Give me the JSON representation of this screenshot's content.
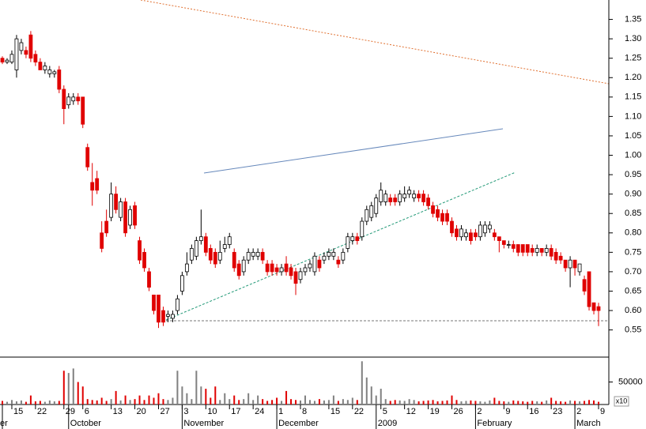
{
  "chart_data": {
    "type": "candlestick",
    "categories": [
      null,
      null,
      "15",
      null,
      null,
      null,
      null,
      "22",
      null,
      null,
      null,
      null,
      null,
      "29",
      null,
      null,
      null,
      "6",
      null,
      null,
      null,
      null,
      null,
      "13",
      null,
      null,
      null,
      null,
      "20",
      null,
      null,
      null,
      null,
      "27",
      null,
      null,
      null,
      null,
      "3",
      null,
      null,
      null,
      null,
      "10",
      null,
      null,
      null,
      null,
      "17",
      null,
      null,
      null,
      null,
      "24",
      null,
      null,
      null,
      null,
      "1",
      null,
      null,
      null,
      null,
      "8",
      null,
      null,
      null,
      null,
      null,
      "15",
      null,
      null,
      null,
      null,
      "22",
      null,
      null,
      null,
      null,
      null,
      "5",
      null,
      null,
      null,
      null,
      "12",
      null,
      null,
      null,
      null,
      "19",
      null,
      null,
      null,
      null,
      "26",
      null,
      null,
      null,
      null,
      "2",
      null,
      null,
      null,
      null,
      null,
      "9",
      null,
      null,
      null,
      null,
      "16",
      null,
      null,
      null,
      null,
      "23",
      null,
      null,
      null,
      null,
      "2",
      null,
      null,
      null,
      null,
      "9"
    ],
    "month_labels": [
      "er",
      null,
      null,
      null,
      null,
      null,
      null,
      null,
      null,
      null,
      null,
      null,
      null,
      null,
      "October",
      null,
      null,
      null,
      null,
      null,
      null,
      null,
      null,
      null,
      null,
      null,
      null,
      null,
      null,
      null,
      null,
      null,
      null,
      null,
      null,
      null,
      null,
      null,
      "November",
      null,
      null,
      null,
      null,
      null,
      null,
      null,
      null,
      null,
      null,
      null,
      null,
      null,
      null,
      null,
      null,
      null,
      null,
      null,
      "December",
      null,
      null,
      null,
      null,
      null,
      null,
      null,
      null,
      null,
      null,
      null,
      null,
      null,
      null,
      null,
      null,
      null,
      null,
      null,
      null,
      "2009",
      null,
      null,
      null,
      null,
      null,
      null,
      null,
      null,
      null,
      null,
      null,
      null,
      null,
      null,
      null,
      null,
      null,
      null,
      null,
      null,
      "February",
      null,
      null,
      null,
      null,
      null,
      null,
      null,
      null,
      null,
      null,
      null,
      null,
      null,
      null,
      null,
      null,
      null,
      null,
      null,
      null,
      "March",
      null,
      null,
      null,
      null,
      null
    ],
    "ohlc": [
      [
        1.25,
        1.255,
        1.235,
        1.24
      ],
      [
        1.24,
        1.25,
        1.235,
        1.245
      ],
      [
        1.24,
        1.27,
        1.235,
        1.26
      ],
      [
        1.22,
        1.31,
        1.2,
        1.3
      ],
      [
        1.27,
        1.3,
        1.26,
        1.29
      ],
      [
        1.27,
        1.28,
        1.25,
        1.26
      ],
      [
        1.31,
        1.32,
        1.24,
        1.25
      ],
      [
        1.26,
        1.27,
        1.23,
        1.24
      ],
      [
        1.24,
        1.25,
        1.22,
        1.22
      ],
      [
        1.22,
        1.24,
        1.21,
        1.23
      ],
      [
        1.21,
        1.23,
        1.2,
        1.22
      ],
      [
        1.21,
        1.22,
        1.2,
        1.215
      ],
      [
        1.22,
        1.23,
        1.16,
        1.17
      ],
      [
        1.17,
        1.18,
        1.08,
        1.12
      ],
      [
        1.13,
        1.16,
        1.12,
        1.15
      ],
      [
        1.14,
        1.16,
        1.13,
        1.15
      ],
      [
        1.15,
        1.16,
        1.13,
        1.14
      ],
      [
        1.15,
        1.15,
        1.07,
        1.08
      ],
      [
        1.02,
        1.03,
        0.96,
        0.97
      ],
      [
        0.93,
        0.98,
        0.87,
        0.91
      ],
      [
        0.94,
        0.96,
        0.9,
        0.91
      ],
      [
        0.8,
        0.83,
        0.75,
        0.76
      ],
      [
        0.83,
        0.86,
        0.79,
        0.8
      ],
      [
        0.84,
        0.93,
        0.83,
        0.9
      ],
      [
        0.9,
        0.92,
        0.85,
        0.86
      ],
      [
        0.84,
        0.89,
        0.83,
        0.88
      ],
      [
        0.88,
        0.89,
        0.79,
        0.8
      ],
      [
        0.82,
        0.87,
        0.81,
        0.86
      ],
      [
        0.87,
        0.88,
        0.81,
        0.82
      ],
      [
        0.78,
        0.79,
        0.72,
        0.73
      ],
      [
        0.75,
        0.76,
        0.7,
        0.71
      ],
      [
        0.7,
        0.71,
        0.65,
        0.66
      ],
      [
        0.64,
        0.64,
        0.59,
        0.6
      ],
      [
        0.64,
        0.64,
        0.555,
        0.57
      ],
      [
        0.6,
        0.61,
        0.56,
        0.57
      ],
      [
        0.585,
        0.6,
        0.57,
        0.59
      ],
      [
        0.58,
        0.6,
        0.57,
        0.59
      ],
      [
        0.6,
        0.64,
        0.59,
        0.63
      ],
      [
        0.65,
        0.7,
        0.64,
        0.69
      ],
      [
        0.7,
        0.75,
        0.69,
        0.72
      ],
      [
        0.73,
        0.77,
        0.72,
        0.76
      ],
      [
        0.74,
        0.79,
        0.73,
        0.78
      ],
      [
        0.78,
        0.86,
        0.77,
        0.79
      ],
      [
        0.79,
        0.8,
        0.74,
        0.75
      ],
      [
        0.76,
        0.77,
        0.72,
        0.73
      ],
      [
        0.75,
        0.76,
        0.71,
        0.72
      ],
      [
        0.73,
        0.78,
        0.72,
        0.75
      ],
      [
        0.76,
        0.79,
        0.75,
        0.77
      ],
      [
        0.77,
        0.8,
        0.76,
        0.79
      ],
      [
        0.75,
        0.76,
        0.7,
        0.71
      ],
      [
        0.72,
        0.73,
        0.68,
        0.69
      ],
      [
        0.7,
        0.74,
        0.69,
        0.73
      ],
      [
        0.73,
        0.76,
        0.72,
        0.75
      ],
      [
        0.74,
        0.76,
        0.73,
        0.75
      ],
      [
        0.74,
        0.76,
        0.73,
        0.75
      ],
      [
        0.75,
        0.76,
        0.72,
        0.73
      ],
      [
        0.72,
        0.73,
        0.69,
        0.7
      ],
      [
        0.72,
        0.73,
        0.69,
        0.7
      ],
      [
        0.71,
        0.72,
        0.69,
        0.7
      ],
      [
        0.7,
        0.72,
        0.69,
        0.71
      ],
      [
        0.72,
        0.74,
        0.69,
        0.7
      ],
      [
        0.71,
        0.72,
        0.68,
        0.69
      ],
      [
        0.7,
        0.71,
        0.64,
        0.67
      ],
      [
        0.68,
        0.71,
        0.67,
        0.7
      ],
      [
        0.7,
        0.72,
        0.69,
        0.71
      ],
      [
        0.71,
        0.73,
        0.7,
        0.72
      ],
      [
        0.7,
        0.75,
        0.69,
        0.74
      ],
      [
        0.73,
        0.74,
        0.7,
        0.71
      ],
      [
        0.73,
        0.75,
        0.72,
        0.74
      ],
      [
        0.74,
        0.76,
        0.73,
        0.75
      ],
      [
        0.74,
        0.76,
        0.73,
        0.75
      ],
      [
        0.73,
        0.74,
        0.71,
        0.72
      ],
      [
        0.73,
        0.76,
        0.72,
        0.75
      ],
      [
        0.76,
        0.8,
        0.75,
        0.79
      ],
      [
        0.78,
        0.8,
        0.77,
        0.79
      ],
      [
        0.79,
        0.8,
        0.77,
        0.78
      ],
      [
        0.79,
        0.84,
        0.78,
        0.83
      ],
      [
        0.83,
        0.87,
        0.82,
        0.86
      ],
      [
        0.84,
        0.88,
        0.83,
        0.87
      ],
      [
        0.85,
        0.9,
        0.84,
        0.89
      ],
      [
        0.88,
        0.93,
        0.87,
        0.91
      ],
      [
        0.88,
        0.91,
        0.87,
        0.9
      ],
      [
        0.89,
        0.9,
        0.87,
        0.88
      ],
      [
        0.89,
        0.9,
        0.87,
        0.88
      ],
      [
        0.88,
        0.91,
        0.87,
        0.9
      ],
      [
        0.89,
        0.92,
        0.88,
        0.9
      ],
      [
        0.9,
        0.92,
        0.89,
        0.91
      ],
      [
        0.89,
        0.91,
        0.88,
        0.9
      ],
      [
        0.9,
        0.91,
        0.88,
        0.89
      ],
      [
        0.9,
        0.91,
        0.87,
        0.88
      ],
      [
        0.89,
        0.9,
        0.86,
        0.87
      ],
      [
        0.87,
        0.88,
        0.84,
        0.85
      ],
      [
        0.86,
        0.87,
        0.83,
        0.84
      ],
      [
        0.85,
        0.86,
        0.82,
        0.83
      ],
      [
        0.85,
        0.86,
        0.82,
        0.83
      ],
      [
        0.83,
        0.84,
        0.79,
        0.8
      ],
      [
        0.81,
        0.82,
        0.78,
        0.79
      ],
      [
        0.79,
        0.82,
        0.78,
        0.81
      ],
      [
        0.79,
        0.81,
        0.78,
        0.8
      ],
      [
        0.8,
        0.81,
        0.77,
        0.78
      ],
      [
        0.8,
        0.81,
        0.78,
        0.79
      ],
      [
        0.79,
        0.83,
        0.78,
        0.82
      ],
      [
        0.8,
        0.83,
        0.79,
        0.82
      ],
      [
        0.81,
        0.83,
        0.8,
        0.82
      ],
      [
        0.8,
        0.81,
        0.78,
        0.79
      ],
      [
        0.79,
        0.79,
        0.75,
        0.78
      ],
      [
        0.78,
        0.78,
        0.76,
        0.77
      ],
      [
        0.77,
        0.78,
        0.76,
        0.77
      ],
      [
        0.77,
        0.78,
        0.75,
        0.76
      ],
      [
        0.77,
        0.77,
        0.74,
        0.75
      ],
      [
        0.77,
        0.77,
        0.74,
        0.75
      ],
      [
        0.77,
        0.77,
        0.74,
        0.75
      ],
      [
        0.76,
        0.77,
        0.74,
        0.75
      ],
      [
        0.75,
        0.77,
        0.74,
        0.76
      ],
      [
        0.76,
        0.76,
        0.74,
        0.75
      ],
      [
        0.75,
        0.77,
        0.74,
        0.76
      ],
      [
        0.76,
        0.77,
        0.73,
        0.74
      ],
      [
        0.75,
        0.76,
        0.72,
        0.73
      ],
      [
        0.74,
        0.75,
        0.72,
        0.73
      ],
      [
        0.73,
        0.73,
        0.7,
        0.71
      ],
      [
        0.71,
        0.74,
        0.66,
        0.73
      ],
      [
        0.73,
        0.73,
        0.69,
        0.71
      ],
      [
        0.7,
        0.72,
        0.69,
        0.72
      ],
      [
        0.68,
        0.69,
        0.64,
        0.65
      ],
      [
        0.7,
        0.7,
        0.6,
        0.61
      ],
      [
        0.62,
        0.62,
        0.59,
        0.6
      ],
      [
        0.61,
        0.62,
        0.56,
        0.6
      ]
    ],
    "volume": [
      8000,
      6000,
      10000,
      7000,
      9000,
      6000,
      20000,
      7000,
      8000,
      6000,
      9000,
      7000,
      8000,
      75000,
      70000,
      80000,
      50000,
      40000,
      12000,
      10000,
      9000,
      15000,
      8000,
      12000,
      30000,
      9000,
      20000,
      10000,
      12000,
      20000,
      10000,
      20000,
      15000,
      25000,
      12000,
      10000,
      15000,
      75000,
      40000,
      25000,
      12000,
      75000,
      40000,
      35000,
      15000,
      40000,
      10000,
      25000,
      12000,
      20000,
      10000,
      12000,
      25000,
      10000,
      20000,
      12000,
      8000,
      10000,
      15000,
      8000,
      30000,
      12000,
      10000,
      9000,
      20000,
      10000,
      8000,
      12000,
      9000,
      10000,
      20000,
      8000,
      12000,
      10000,
      15000,
      10000,
      96000,
      60000,
      40000,
      20000,
      35000,
      12000,
      8000,
      10000,
      9000,
      8000,
      12000,
      10000,
      7000,
      8000,
      9000,
      10000,
      7000,
      8000,
      9000,
      20000,
      10000,
      7000,
      8000,
      9000,
      8000,
      7000,
      6000,
      9000,
      15000,
      8000,
      7000,
      6000,
      9000,
      8000,
      7000,
      6000,
      8000,
      7000,
      6000,
      9000,
      15000,
      8000,
      7000,
      6000,
      9000,
      8000,
      7000,
      8000,
      10000,
      9000,
      6000
    ],
    "ylim": [
      0.48,
      1.4
    ],
    "yticks": [
      0.55,
      {
        "value": 0.6,
        "label": "0.60"
      },
      0.65,
      {
        "value": 0.7,
        "label": "0.70"
      },
      0.75,
      {
        "value": 0.8,
        "label": "0.80"
      },
      0.85,
      {
        "value": 0.9,
        "label": "0.90"
      },
      0.95,
      {
        "value": 1.0,
        "label": "1.00"
      },
      1.05,
      {
        "value": 1.1,
        "label": "1.10"
      },
      1.15,
      {
        "value": 1.2,
        "label": "1.20"
      },
      1.25,
      {
        "value": 1.3,
        "label": "1.30"
      },
      1.35
    ],
    "volume_ylim": [
      0,
      100000
    ],
    "volume_yticks": [
      50000
    ],
    "volume_unit_label": "x10",
    "up_color": "#ffffff",
    "down_color": "#e00000",
    "volume_up_color": "#808080",
    "volume_down_color": "#e00000"
  }
}
